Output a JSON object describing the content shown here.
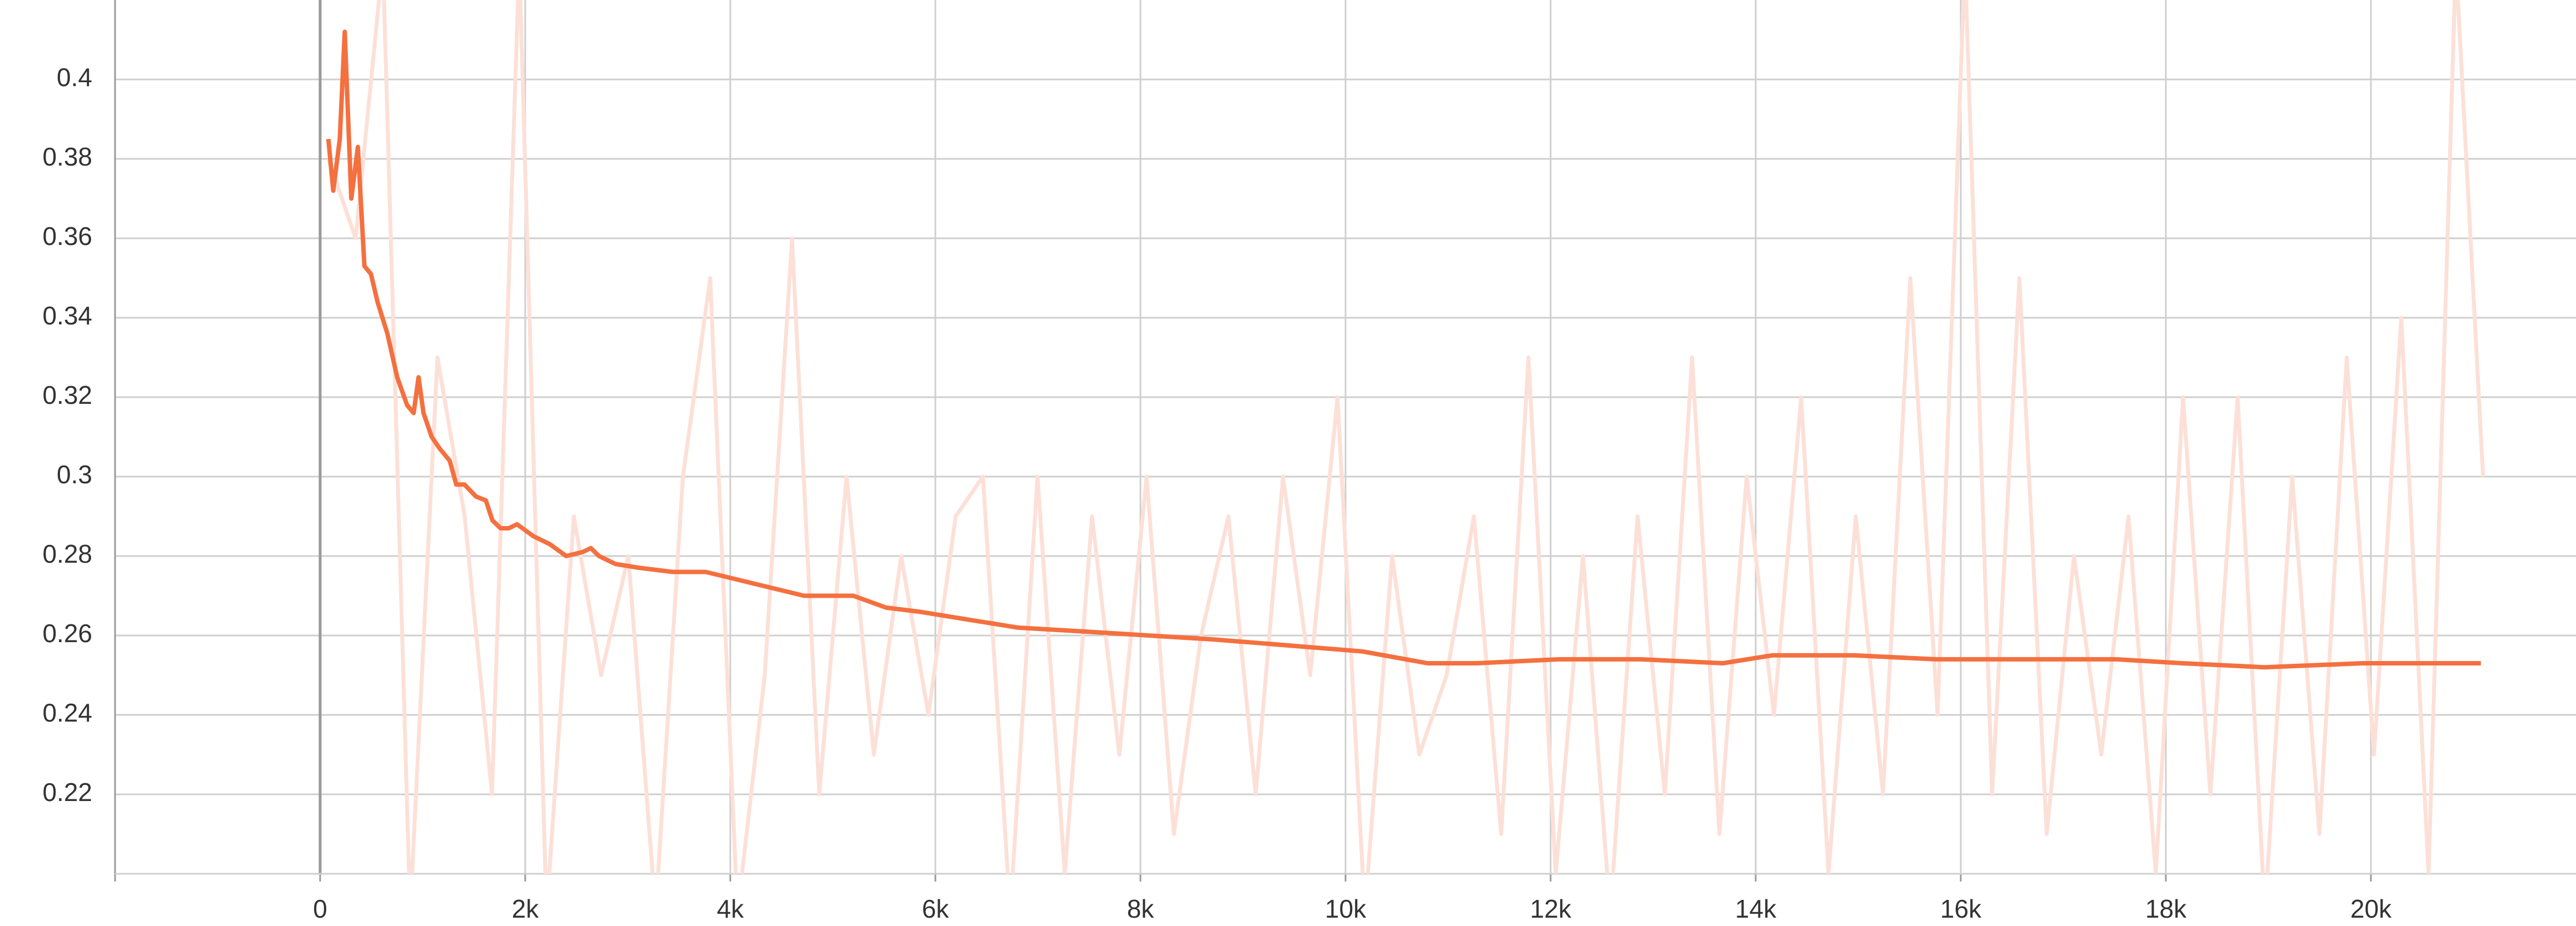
{
  "chart_data": {
    "type": "line",
    "xlim": [
      -2000,
      22000
    ],
    "ylim": [
      0.2,
      0.42
    ],
    "xticks": [
      0,
      {
        "value": 2000,
        "label": "2k"
      },
      {
        "value": 4000,
        "label": "4k"
      },
      {
        "value": 6000,
        "label": "6k"
      },
      {
        "value": 8000,
        "label": "8k"
      },
      {
        "value": 10000,
        "label": "10k"
      },
      {
        "value": 12000,
        "label": "12k"
      },
      {
        "value": 14000,
        "label": "14k"
      },
      {
        "value": 16000,
        "label": "16k"
      },
      {
        "value": 18000,
        "label": "18k"
      },
      {
        "value": 20000,
        "label": "20k"
      }
    ],
    "yticks": [
      0.22,
      0.24,
      0.26,
      0.28,
      0.3,
      0.32,
      0.34,
      0.36,
      0.38,
      0.4
    ],
    "grid": true,
    "series": [
      {
        "color": "#fce0d7",
        "x": [
          80,
          346,
          612,
          878,
          1144,
          1410,
          1676,
          1942,
          2208,
          2474,
          2740,
          3006,
          3272,
          3538,
          3804,
          4070,
          4336,
          4602,
          4868,
          5134,
          5400,
          5666,
          5932,
          6198,
          6464,
          6730,
          6996,
          7262,
          7528,
          7794,
          8060,
          8326,
          8592,
          8858,
          9124,
          9390,
          9656,
          9922,
          10188,
          10454,
          10720,
          10986,
          11252,
          11518,
          11784,
          12050,
          12316,
          12582,
          12848,
          13114,
          13380,
          13646,
          13912,
          14178,
          14444,
          14710,
          14976,
          15242,
          15508,
          15774,
          16040,
          16306,
          16572,
          16838,
          17104,
          17370,
          17636,
          17902,
          18168,
          18434,
          18700,
          18966,
          19232,
          19498,
          19764,
          20030,
          20296,
          20562,
          20828,
          21094
        ],
        "values": [
          0.38,
          0.36,
          0.43,
          0.19,
          0.33,
          0.29,
          0.22,
          0.43,
          0.19,
          0.29,
          0.25,
          0.28,
          0.19,
          0.3,
          0.35,
          0.19,
          0.25,
          0.36,
          0.22,
          0.3,
          0.23,
          0.28,
          0.24,
          0.29,
          0.3,
          0.19,
          0.3,
          0.2,
          0.29,
          0.23,
          0.3,
          0.21,
          0.26,
          0.29,
          0.22,
          0.3,
          0.25,
          0.32,
          0.19,
          0.28,
          0.23,
          0.25,
          0.29,
          0.21,
          0.33,
          0.2,
          0.28,
          0.19,
          0.29,
          0.22,
          0.33,
          0.21,
          0.3,
          0.24,
          0.32,
          0.2,
          0.29,
          0.22,
          0.35,
          0.24,
          0.43,
          0.22,
          0.35,
          0.21,
          0.28,
          0.23,
          0.29,
          0.2,
          0.32,
          0.22,
          0.32,
          0.19,
          0.3,
          0.21,
          0.33,
          0.23,
          0.34,
          0.2,
          0.43,
          0.3
        ]
      },
      {
        "color": "#f4703f",
        "x": [
          80,
          128,
          192,
          240,
          304,
          368,
          432,
          496,
          560,
          656,
          752,
          848,
          912,
          960,
          1008,
          1088,
          1168,
          1264,
          1328,
          1408,
          1520,
          1616,
          1680,
          1760,
          1840,
          1920,
          2080,
          2240,
          2400,
          2560,
          2640,
          2720,
          2880,
          3120,
          3440,
          3760,
          4080,
          4400,
          4720,
          5200,
          5520,
          5840,
          6320,
          6800,
          7440,
          8080,
          8720,
          9200,
          9680,
          10160,
          10800,
          11280,
          12080,
          12880,
          13680,
          14160,
          14960,
          15760,
          16720,
          17520,
          18160,
          18960,
          19920,
          20560,
          21072
        ],
        "values": [
          0.385,
          0.372,
          0.385,
          0.412,
          0.37,
          0.383,
          0.353,
          0.351,
          0.344,
          0.336,
          0.325,
          0.318,
          0.316,
          0.325,
          0.316,
          0.31,
          0.307,
          0.304,
          0.298,
          0.298,
          0.295,
          0.294,
          0.289,
          0.287,
          0.287,
          0.288,
          0.285,
          0.283,
          0.28,
          0.281,
          0.282,
          0.28,
          0.278,
          0.277,
          0.276,
          0.276,
          0.274,
          0.272,
          0.27,
          0.27,
          0.267,
          0.266,
          0.264,
          0.262,
          0.261,
          0.26,
          0.259,
          0.258,
          0.257,
          0.256,
          0.253,
          0.253,
          0.254,
          0.254,
          0.253,
          0.255,
          0.255,
          0.254,
          0.254,
          0.254,
          0.253,
          0.252,
          0.253,
          0.253,
          0.253
        ]
      }
    ]
  }
}
